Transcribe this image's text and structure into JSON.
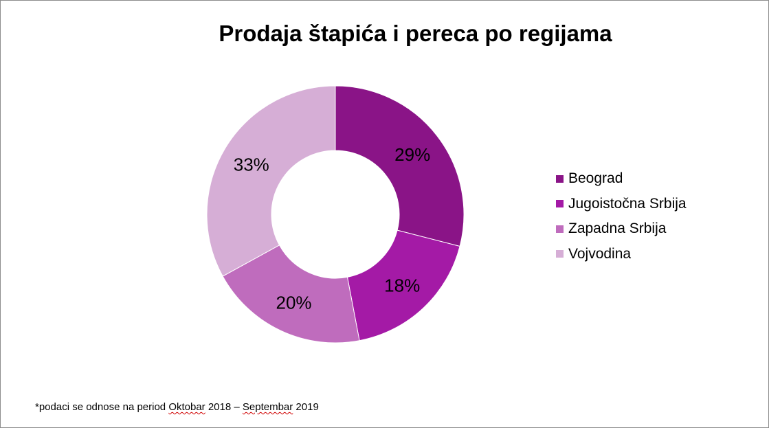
{
  "chart_data": {
    "type": "pie",
    "variant": "donut",
    "title": "Prodaja štapića i pereca po regijama",
    "categories": [
      "Beograd",
      "Jugoistočna Srbija",
      "Zapadna Srbija",
      "Vojvodina"
    ],
    "values": [
      29,
      18,
      20,
      33
    ],
    "data_labels": [
      "29%",
      "18%",
      "20%",
      "33%"
    ],
    "colors": [
      "#8a1487",
      "#a41aa6",
      "#bf6cbd",
      "#d6aed6"
    ],
    "legend_position": "right",
    "start_angle": "12 o'clock",
    "direction": "clockwise"
  },
  "footnote": {
    "prefix": "*podaci se odnose na period ",
    "word1": "Oktobar",
    "middle": " 2018 – ",
    "word2": "Septembar",
    "suffix": " 2019"
  }
}
